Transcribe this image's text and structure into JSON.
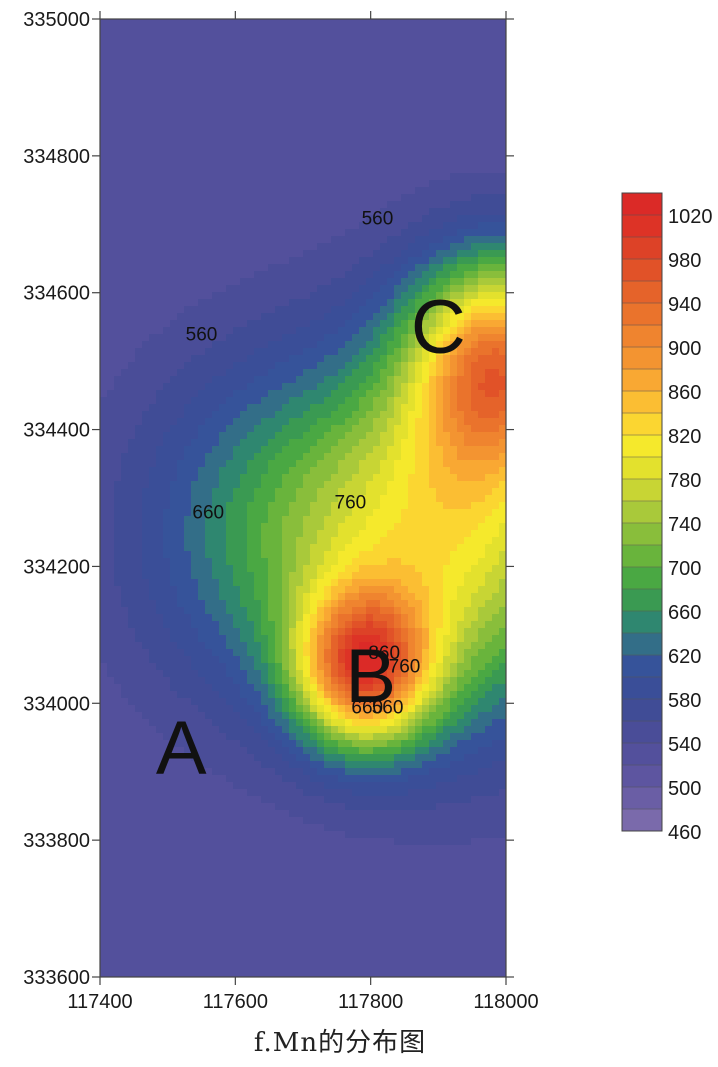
{
  "caption": "f.Mn的分布图",
  "chart_data": {
    "type": "heatmap",
    "variable": "Mn",
    "x_ticks": [
      117400,
      117600,
      117800,
      118000
    ],
    "y_ticks": [
      335000,
      334800,
      334600,
      334400,
      334200,
      334000,
      333800,
      333600
    ],
    "xlim": [
      117400,
      118000
    ],
    "ylim": [
      333600,
      335000
    ],
    "color_scale": {
      "levels": [
        460,
        480,
        500,
        520,
        540,
        560,
        580,
        600,
        620,
        640,
        660,
        680,
        700,
        720,
        740,
        760,
        780,
        800,
        820,
        840,
        860,
        880,
        900,
        920,
        940,
        960,
        980,
        1000,
        1020,
        1040
      ],
      "colors": [
        "#7a6aab",
        "#6a5ea5",
        "#5d55a0",
        "#53509c",
        "#4a4d98",
        "#404c96",
        "#3a4e98",
        "#36539a",
        "#336e88",
        "#2f8770",
        "#3a9a52",
        "#4aa843",
        "#69b43c",
        "#89be3b",
        "#a9c93a",
        "#c8d534",
        "#e3e12d",
        "#f5e92c",
        "#fbd631",
        "#fbbe33",
        "#f9a833",
        "#f39431",
        "#ef842f",
        "#ea732c",
        "#e5632a",
        "#e15228",
        "#dd4227",
        "#dd3326",
        "#db2a27"
      ],
      "labels": [
        "1020",
        "980",
        "940",
        "900",
        "860",
        "820",
        "780",
        "740",
        "700",
        "660",
        "620",
        "580",
        "540",
        "500",
        "460"
      ]
    },
    "contour_labels": [
      {
        "text": "560",
        "x": 117810,
        "y": 334700
      },
      {
        "text": "560",
        "x": 117550,
        "y": 334530
      },
      {
        "text": "660",
        "x": 117560,
        "y": 334270
      },
      {
        "text": "760",
        "x": 117770,
        "y": 334285
      },
      {
        "text": "760",
        "x": 117850,
        "y": 334045
      },
      {
        "text": "660",
        "x": 117795,
        "y": 333985
      },
      {
        "text": "560",
        "x": 117825,
        "y": 333985
      },
      {
        "text": "860",
        "x": 117820,
        "y": 334065
      }
    ],
    "sites": [
      {
        "label": "A",
        "x": 117520,
        "y": 333935
      },
      {
        "label": "B",
        "x": 117800,
        "y": 334040
      },
      {
        "label": "C",
        "x": 117900,
        "y": 334550
      }
    ],
    "field_sources": [
      {
        "x": 117790,
        "y": 334050,
        "peak": 960,
        "sx": 70,
        "sy": 80
      },
      {
        "x": 117990,
        "y": 334500,
        "peak": 920,
        "sx": 90,
        "sy": 110
      },
      {
        "x": 117950,
        "y": 334250,
        "peak": 800,
        "sx": 150,
        "sy": 200
      },
      {
        "x": 117700,
        "y": 334250,
        "peak": 720,
        "sx": 170,
        "sy": 180
      }
    ],
    "background": 520,
    "grid": false
  }
}
